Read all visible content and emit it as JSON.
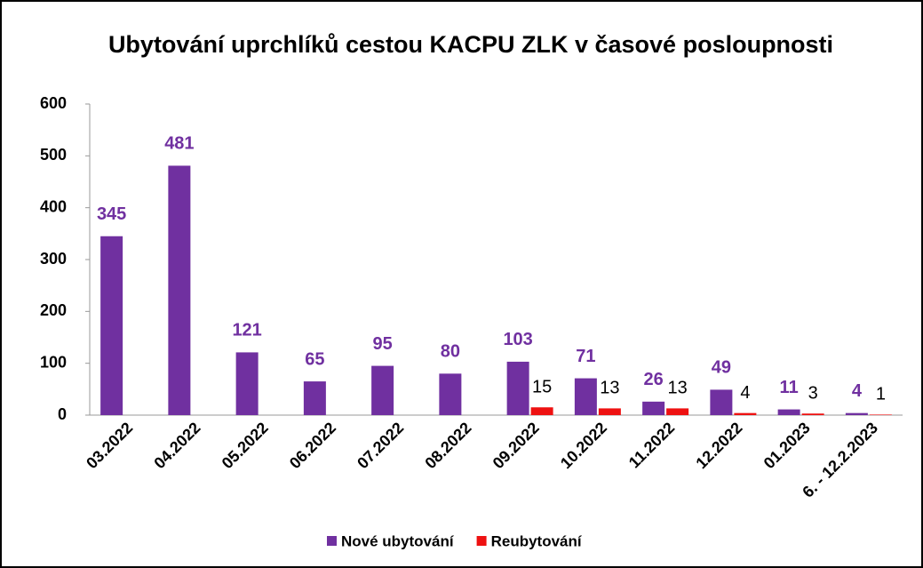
{
  "chart_data": {
    "type": "bar",
    "title": "Ubytování uprchlíků cestou KACPU ZLK v časové posloupnosti",
    "categories": [
      "03.2022",
      "04.2022",
      "05.2022",
      "06.2022",
      "07.2022",
      "08.2022",
      "09.2022",
      "10.2022",
      "11.2022",
      "12.2022",
      "01.2023",
      "6. - 12.2.2023"
    ],
    "series": [
      {
        "name": "Nové ubytování",
        "color": "#7030a0",
        "values": [
          345,
          481,
          121,
          65,
          95,
          80,
          103,
          71,
          26,
          49,
          11,
          4
        ]
      },
      {
        "name": "Reubytování",
        "color": "#ee1111",
        "values": [
          null,
          null,
          null,
          null,
          null,
          null,
          15,
          13,
          13,
          4,
          3,
          1
        ]
      }
    ],
    "ylim": [
      0,
      600
    ],
    "yticks": [
      0,
      100,
      200,
      300,
      400,
      500,
      600
    ],
    "grid": false,
    "legend": "bottom"
  }
}
